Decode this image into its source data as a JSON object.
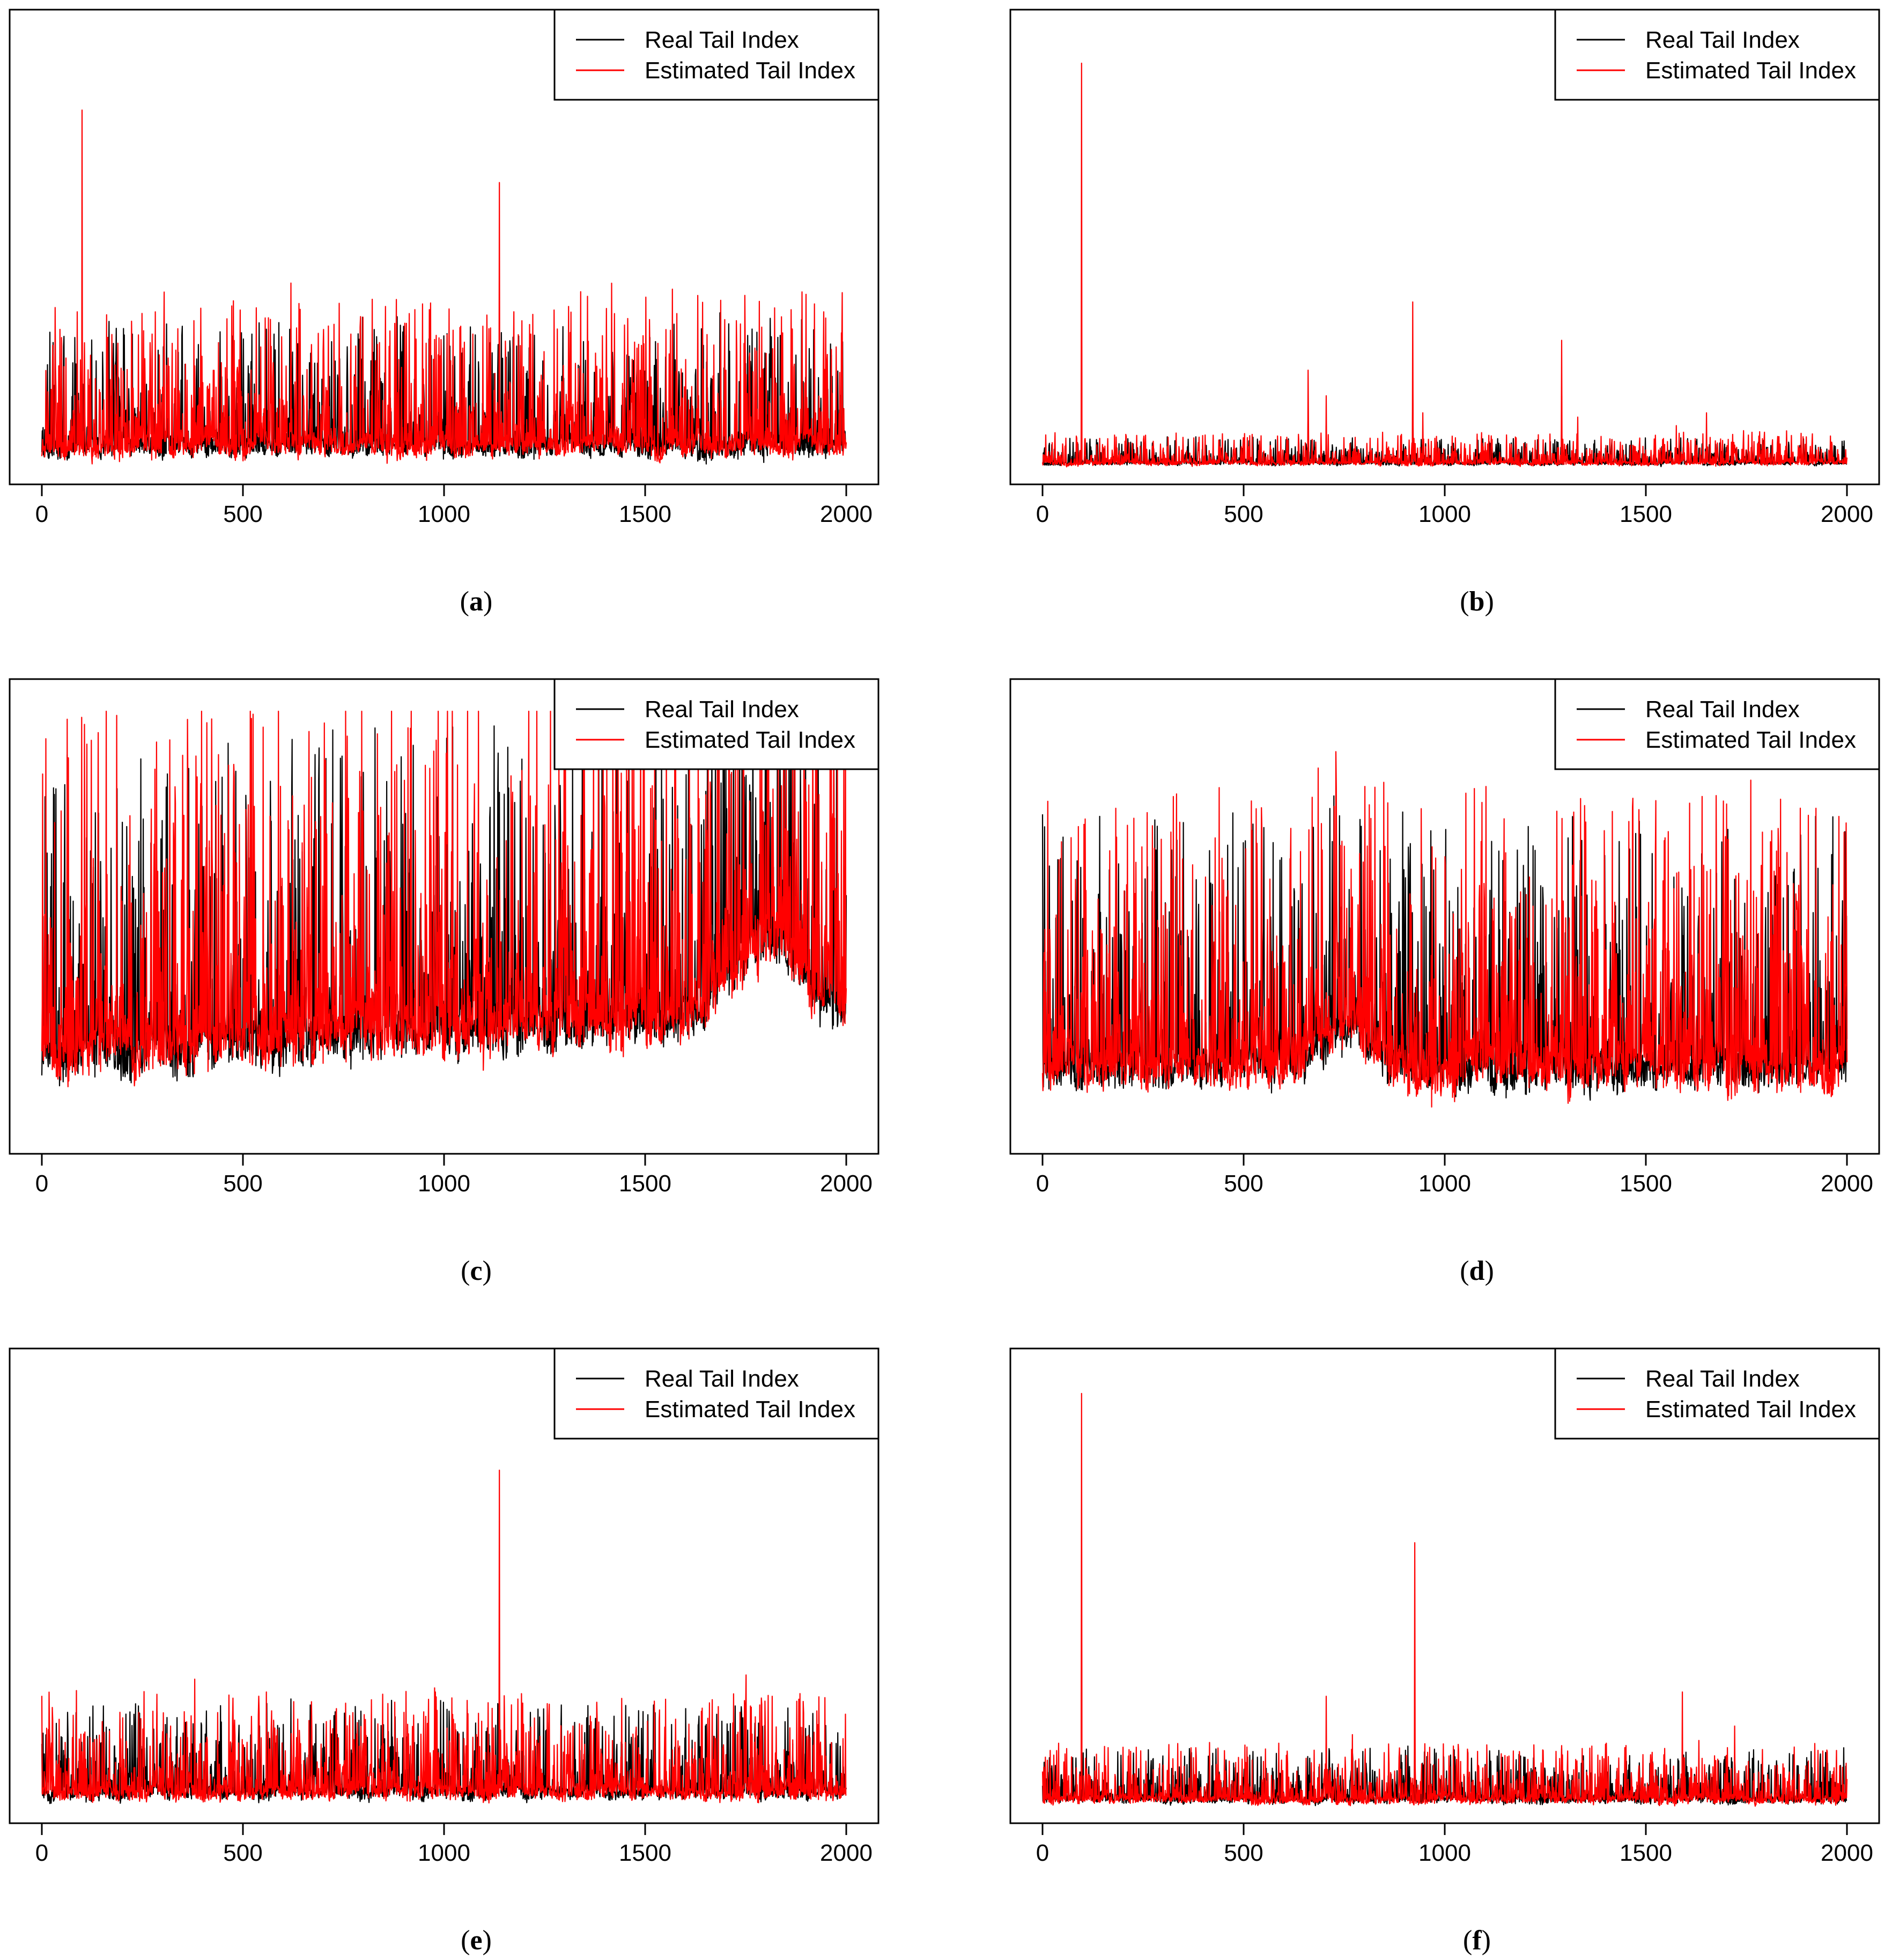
{
  "figure": {
    "colors": {
      "real": "#000000",
      "estimated": "#ff0000"
    },
    "legend_entries": [
      "Real Tail Index",
      "Estimated Tail Index"
    ]
  },
  "chart_data": [
    {
      "id": "a",
      "type": "line",
      "caption": "a",
      "x_ticks": [
        0,
        500,
        1000,
        1500,
        2000
      ],
      "xlim": [
        0,
        2000
      ],
      "ylim": [
        0,
        1
      ],
      "legend": "top-right",
      "title": "",
      "xlabel": "",
      "ylabel": "",
      "series": [
        {
          "name": "Real Tail Index",
          "color": "#000000",
          "n": 2000,
          "seed": 11,
          "baseline": 0.03,
          "noise": 0.05,
          "spikes": [
            [
              100,
              0.27
            ],
            [
              1137,
              0.24
            ],
            [
              60,
              0.06
            ],
            [
              380,
              0.07
            ],
            [
              640,
              0.08
            ],
            [
              1480,
              0.05
            ],
            [
              1750,
              0.06
            ]
          ]
        },
        {
          "name": "Estimated Tail Index",
          "color": "#ff0000",
          "n": 2000,
          "seed": 12,
          "baseline": 0.03,
          "noise": 0.06,
          "spikes": [
            [
              100,
              0.84
            ],
            [
              1137,
              0.67
            ],
            [
              60,
              0.25
            ],
            [
              380,
              0.24
            ],
            [
              640,
              0.2
            ],
            [
              1470,
              0.2
            ],
            [
              1700,
              0.23
            ],
            [
              1750,
              0.22
            ],
            [
              800,
              0.14
            ],
            [
              450,
              0.13
            ],
            [
              1320,
              0.15
            ]
          ]
        }
      ]
    },
    {
      "id": "b",
      "type": "line",
      "caption": "b",
      "x_ticks": [
        0,
        500,
        1000,
        1500,
        2000
      ],
      "xlim": [
        0,
        2000
      ],
      "ylim": [
        0,
        1
      ],
      "legend": "top-right",
      "title": "",
      "xlabel": "",
      "ylabel": "",
      "series": [
        {
          "name": "Real Tail Index",
          "color": "#000000",
          "n": 2000,
          "seed": 21,
          "baseline": 0.008,
          "noise": 0.01,
          "spikes": [
            [
              97,
              0.35
            ],
            [
              920,
              0.19
            ],
            [
              1290,
              0.17
            ],
            [
              660,
              0.13
            ],
            [
              705,
              0.1
            ],
            [
              1650,
              0.05
            ],
            [
              1575,
              0.05
            ]
          ]
        },
        {
          "name": "Estimated Tail Index",
          "color": "#ff0000",
          "n": 2000,
          "seed": 22,
          "baseline": 0.008,
          "noise": 0.012,
          "spikes": [
            [
              97,
              0.95
            ],
            [
              920,
              0.39
            ],
            [
              1290,
              0.3
            ],
            [
              660,
              0.23
            ],
            [
              705,
              0.17
            ],
            [
              1650,
              0.13
            ],
            [
              1575,
              0.1
            ],
            [
              945,
              0.13
            ],
            [
              1330,
              0.12
            ]
          ]
        }
      ]
    },
    {
      "id": "c",
      "type": "line",
      "caption": "c",
      "x_ticks": [
        0,
        500,
        1000,
        1500,
        2000
      ],
      "xlim": [
        0,
        2000
      ],
      "ylim": [
        0,
        1
      ],
      "legend": "top-right",
      "title": "",
      "xlabel": "",
      "ylabel": "",
      "series": [
        {
          "name": "Real Tail Index",
          "color": "#000000",
          "n": 2000,
          "seed": 31,
          "baseline": 0.15,
          "noise": 0.12,
          "trend": 0.1,
          "bumps": [
            [
              1800,
              0.18,
              120
            ]
          ],
          "spikes": [
            [
              1750,
              0.55
            ],
            [
              1815,
              0.6
            ]
          ]
        },
        {
          "name": "Estimated Tail Index",
          "color": "#ff0000",
          "n": 2000,
          "seed": 32,
          "baseline": 0.15,
          "noise": 0.14,
          "trend": 0.1,
          "bumps": [
            [
              1800,
              0.18,
              120
            ]
          ],
          "spikes": [
            [
              1815,
              0.68
            ],
            [
              1750,
              0.58
            ],
            [
              1050,
              0.37
            ],
            [
              1330,
              0.37
            ],
            [
              810,
              0.33
            ],
            [
              380,
              0.3
            ]
          ]
        }
      ]
    },
    {
      "id": "d",
      "type": "line",
      "caption": "d",
      "x_ticks": [
        0,
        500,
        1000,
        1500,
        2000
      ],
      "xlim": [
        0,
        2000
      ],
      "ylim": [
        0,
        1
      ],
      "legend": "top-right",
      "title": "",
      "xlabel": "",
      "ylabel": "",
      "series": [
        {
          "name": "Real Tail Index",
          "color": "#000000",
          "n": 2000,
          "seed": 41,
          "baseline": 0.12,
          "noise": 0.1,
          "bumps": [
            [
              750,
              0.1,
              90
            ]
          ],
          "spikes": [
            [
              1185,
              0.55
            ],
            [
              1400,
              0.5
            ],
            [
              1675,
              0.62
            ],
            [
              1745,
              0.55
            ],
            [
              1885,
              0.54
            ],
            [
              1330,
              0.44
            ],
            [
              1435,
              0.44
            ],
            [
              770,
              0.37
            ]
          ]
        },
        {
          "name": "Estimated Tail Index",
          "color": "#ff0000",
          "n": 2000,
          "seed": 42,
          "baseline": 0.12,
          "noise": 0.11,
          "bumps": [
            [
              750,
              0.1,
              90
            ]
          ],
          "spikes": [
            [
              1185,
              0.44
            ],
            [
              1400,
              0.44
            ],
            [
              1675,
              0.5
            ],
            [
              1745,
              0.44
            ],
            [
              1885,
              0.45
            ],
            [
              770,
              0.37
            ],
            [
              705,
              0.34
            ]
          ]
        }
      ]
    },
    {
      "id": "e",
      "type": "line",
      "caption": "e",
      "x_ticks": [
        0,
        500,
        1000,
        1500,
        2000
      ],
      "xlim": [
        0,
        2000
      ],
      "ylim": [
        0,
        1
      ],
      "legend": "top-right",
      "title": "",
      "xlabel": "",
      "ylabel": "",
      "series": [
        {
          "name": "Real Tail Index",
          "color": "#000000",
          "n": 2000,
          "seed": 51,
          "baseline": 0.02,
          "noise": 0.035,
          "spikes": [
            [
              1137,
              0.31
            ],
            [
              1750,
              0.16
            ],
            [
              380,
              0.14
            ],
            [
              1815,
              0.13
            ],
            [
              100,
              0.1
            ]
          ]
        },
        {
          "name": "Estimated Tail Index",
          "color": "#ff0000",
          "n": 2000,
          "seed": 52,
          "baseline": 0.02,
          "noise": 0.04,
          "spikes": [
            [
              1137,
              0.79
            ],
            [
              1750,
              0.31
            ],
            [
              380,
              0.3
            ],
            [
              1815,
              0.26
            ],
            [
              1085,
              0.22
            ],
            [
              320,
              0.19
            ],
            [
              640,
              0.18
            ],
            [
              100,
              0.13
            ],
            [
              1450,
              0.14
            ],
            [
              360,
              0.2
            ]
          ]
        }
      ]
    },
    {
      "id": "f",
      "type": "line",
      "caption": "f",
      "x_ticks": [
        0,
        500,
        1000,
        1500,
        2000
      ],
      "xlim": [
        0,
        2000
      ],
      "ylim": [
        0,
        1
      ],
      "legend": "top-right",
      "title": "",
      "xlabel": "",
      "ylabel": "",
      "series": [
        {
          "name": "Real Tail Index",
          "color": "#000000",
          "n": 2000,
          "seed": 61,
          "baseline": 0.01,
          "noise": 0.02,
          "spikes": [
            [
              97,
              0.45
            ],
            [
              925,
              0.28
            ],
            [
              705,
              0.15
            ],
            [
              1590,
              0.14
            ],
            [
              770,
              0.13
            ],
            [
              1720,
              0.12
            ],
            [
              1100,
              0.1
            ]
          ]
        },
        {
          "name": "Estimated Tail Index",
          "color": "#ff0000",
          "n": 2000,
          "seed": 62,
          "baseline": 0.01,
          "noise": 0.022,
          "spikes": [
            [
              97,
              0.97
            ],
            [
              925,
              0.62
            ],
            [
              705,
              0.26
            ],
            [
              1590,
              0.27
            ],
            [
              770,
              0.17
            ],
            [
              1720,
              0.19
            ],
            [
              40,
              0.15
            ],
            [
              12,
              0.11
            ],
            [
              1385,
              0.11
            ],
            [
              1010,
              0.12
            ]
          ]
        }
      ]
    }
  ]
}
